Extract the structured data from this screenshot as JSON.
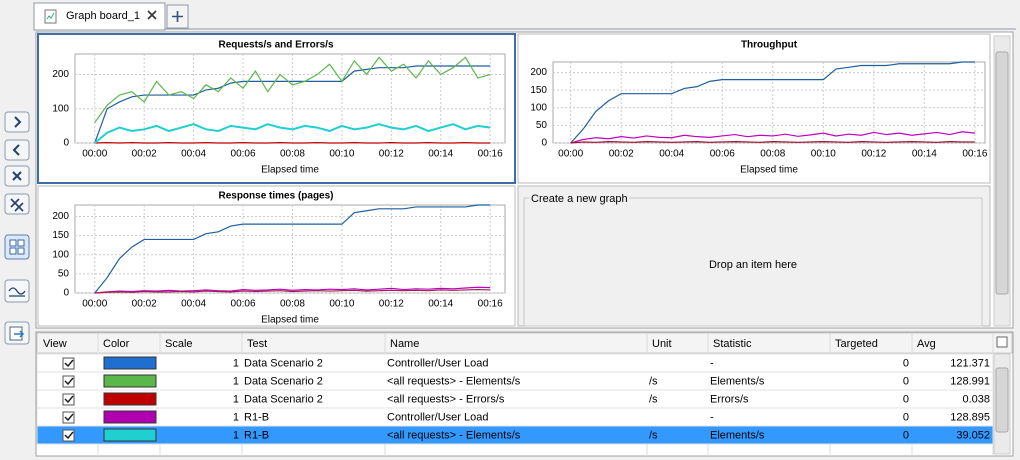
{
  "tab": {
    "title": "Graph board_1"
  },
  "chart_data": [
    {
      "type": "line",
      "title": "Requests/s and Errors/s",
      "x_label": "Elapsed time",
      "x": [
        0,
        0.5,
        1,
        1.5,
        2,
        2.5,
        3,
        3.5,
        4,
        4.5,
        5,
        5.5,
        6,
        6.5,
        7,
        7.5,
        8,
        8.5,
        9,
        9.5,
        10,
        10.5,
        11,
        11.5,
        12,
        12.5,
        13,
        13.5,
        14,
        14.5,
        15,
        15.5,
        16
      ],
      "xlim": [
        -0.8,
        16.6
      ],
      "xticks": [
        {
          "value": 0,
          "label": "00:00"
        },
        {
          "value": 2,
          "label": "00:02"
        },
        {
          "value": 4,
          "label": "00:04"
        },
        {
          "value": 6,
          "label": "00:06"
        },
        {
          "value": 8,
          "label": "00:08"
        },
        {
          "value": 10,
          "label": "00:10"
        },
        {
          "value": 12,
          "label": "00:12"
        },
        {
          "value": 14,
          "label": "00:14"
        },
        {
          "value": 16,
          "label": "00:16"
        }
      ],
      "ylim": [
        0,
        260
      ],
      "yticks": [
        0,
        100,
        200
      ],
      "grid": true,
      "series": [
        {
          "color": "#1f5fa0",
          "values": [
            0,
            100,
            120,
            135,
            140,
            140,
            140,
            140,
            140,
            155,
            160,
            175,
            180,
            180,
            180,
            180,
            180,
            180,
            180,
            180,
            180,
            210,
            215,
            220,
            220,
            220,
            225,
            225,
            225,
            225,
            225,
            225,
            225
          ]
        },
        {
          "color": "#5ab84a",
          "values": [
            60,
            110,
            140,
            150,
            120,
            180,
            140,
            150,
            130,
            170,
            150,
            190,
            160,
            210,
            150,
            200,
            170,
            180,
            200,
            230,
            180,
            240,
            200,
            250,
            210,
            230,
            190,
            240,
            200,
            220,
            250,
            190,
            200
          ]
        },
        {
          "color": "#c00000",
          "values": [
            0,
            1,
            0,
            1,
            0,
            0,
            1,
            0,
            0,
            1,
            0,
            0,
            1,
            0,
            0,
            1,
            0,
            0,
            1,
            0,
            0,
            1,
            0,
            0,
            1,
            0,
            0,
            1,
            0,
            0,
            1,
            0,
            0
          ]
        },
        {
          "color": "#20d0d0",
          "values": [
            0,
            30,
            45,
            35,
            40,
            50,
            35,
            45,
            55,
            40,
            35,
            50,
            45,
            40,
            55,
            45,
            40,
            50,
            45,
            35,
            50,
            40,
            45,
            55,
            45,
            40,
            50,
            35,
            45,
            55,
            40,
            50,
            45
          ]
        }
      ]
    },
    {
      "type": "line",
      "title": "Throughput",
      "x_label": "Elapsed time",
      "x": [
        0,
        0.5,
        1,
        1.5,
        2,
        2.5,
        3,
        3.5,
        4,
        4.5,
        5,
        5.5,
        6,
        6.5,
        7,
        7.5,
        8,
        8.5,
        9,
        9.5,
        10,
        10.5,
        11,
        11.5,
        12,
        12.5,
        13,
        13.5,
        14,
        14.5,
        15,
        15.5,
        16
      ],
      "xlim": [
        -0.7,
        16.4
      ],
      "xticks": [
        {
          "value": 0,
          "label": "00:00"
        },
        {
          "value": 2,
          "label": "00:02"
        },
        {
          "value": 4,
          "label": "00:04"
        },
        {
          "value": 6,
          "label": "00:06"
        },
        {
          "value": 8,
          "label": "00:08"
        },
        {
          "value": 10,
          "label": "00:10"
        },
        {
          "value": 12,
          "label": "00:12"
        },
        {
          "value": 14,
          "label": "00:14"
        },
        {
          "value": 16,
          "label": "00:16"
        }
      ],
      "ylim": [
        0,
        230
      ],
      "yticks": [
        0,
        50,
        100,
        150,
        200
      ],
      "grid": true,
      "series": [
        {
          "color": "#1f5fa0",
          "values": [
            0,
            40,
            90,
            120,
            140,
            140,
            140,
            140,
            140,
            155,
            160,
            175,
            180,
            180,
            180,
            180,
            180,
            180,
            180,
            180,
            180,
            210,
            215,
            220,
            220,
            220,
            225,
            225,
            225,
            225,
            225,
            230,
            230
          ]
        },
        {
          "color": "#c000c0",
          "values": [
            0,
            10,
            15,
            12,
            18,
            14,
            20,
            16,
            15,
            22,
            18,
            16,
            20,
            24,
            18,
            22,
            20,
            25,
            19,
            23,
            28,
            20,
            25,
            22,
            30,
            24,
            28,
            22,
            26,
            30,
            24,
            32,
            28
          ]
        },
        {
          "color": "#a01030",
          "values": [
            0,
            3,
            2,
            4,
            3,
            2,
            4,
            3,
            2,
            3,
            4,
            2,
            3,
            4,
            3,
            2,
            4,
            3,
            2,
            3,
            4,
            3,
            2,
            4,
            3,
            2,
            3,
            4,
            3,
            2,
            4,
            3,
            3
          ]
        }
      ]
    },
    {
      "type": "line",
      "title": "Response times (pages)",
      "x_label": "Elapsed time",
      "x": [
        0,
        0.5,
        1,
        1.5,
        2,
        2.5,
        3,
        3.5,
        4,
        4.5,
        5,
        5.5,
        6,
        6.5,
        7,
        7.5,
        8,
        8.5,
        9,
        9.5,
        10,
        10.5,
        11,
        11.5,
        12,
        12.5,
        13,
        13.5,
        14,
        14.5,
        15,
        15.5,
        16
      ],
      "xlim": [
        -0.8,
        16.6
      ],
      "xticks": [
        {
          "value": 0,
          "label": "00:00"
        },
        {
          "value": 2,
          "label": "00:02"
        },
        {
          "value": 4,
          "label": "00:04"
        },
        {
          "value": 6,
          "label": "00:06"
        },
        {
          "value": 8,
          "label": "00:08"
        },
        {
          "value": 10,
          "label": "00:10"
        },
        {
          "value": 12,
          "label": "00:12"
        },
        {
          "value": 14,
          "label": "00:14"
        },
        {
          "value": 16,
          "label": "00:16"
        }
      ],
      "ylim": [
        0,
        230
      ],
      "yticks": [
        0,
        50,
        100,
        150,
        200
      ],
      "grid": true,
      "series": [
        {
          "color": "#1f5fa0",
          "values": [
            0,
            40,
            90,
            120,
            140,
            140,
            140,
            140,
            140,
            155,
            160,
            175,
            180,
            180,
            180,
            180,
            180,
            180,
            180,
            180,
            180,
            210,
            215,
            220,
            220,
            220,
            225,
            225,
            225,
            225,
            225,
            230,
            230
          ]
        },
        {
          "color": "#c000c0",
          "values": [
            0,
            3,
            5,
            4,
            6,
            5,
            7,
            5,
            6,
            8,
            6,
            5,
            9,
            7,
            8,
            10,
            7,
            9,
            8,
            10,
            9,
            11,
            8,
            10,
            12,
            9,
            11,
            10,
            12,
            11,
            13,
            15,
            14
          ]
        },
        {
          "color": "#a02050",
          "values": [
            0,
            2,
            3,
            2,
            4,
            3,
            3,
            4,
            3,
            5,
            4,
            3,
            5,
            4,
            5,
            6,
            4,
            5,
            6,
            5,
            6,
            7,
            5,
            6,
            7,
            6,
            7,
            6,
            8,
            7,
            8,
            9,
            8
          ]
        }
      ]
    }
  ],
  "new_graph": {
    "title": "Create a new graph",
    "hint": "Drop an item here"
  },
  "table": {
    "columns": [
      "View",
      "Color",
      "Scale",
      "Test",
      "Name",
      "Unit",
      "Statistic",
      "Targeted",
      "Avg"
    ],
    "rows": [
      {
        "color": "#1f6fd0",
        "scale": 1,
        "test": "Data Scenario 2",
        "name": "Controller/User Load",
        "unit": "",
        "statistic": "-",
        "targeted": 0,
        "avg": 121.371
      },
      {
        "color": "#5ab84a",
        "scale": 1,
        "test": "Data Scenario 2",
        "name": "<all requests> - Elements/s",
        "unit": "/s",
        "statistic": "Elements/s",
        "targeted": 0,
        "avg": 128.991
      },
      {
        "color": "#c00000",
        "scale": 1,
        "test": "Data Scenario 2",
        "name": "<all requests> - Errors/s",
        "unit": "/s",
        "statistic": "Errors/s",
        "targeted": 0,
        "avg": 0.038
      },
      {
        "color": "#b000b0",
        "scale": 1,
        "test": "R1-B",
        "name": "Controller/User Load",
        "unit": "",
        "statistic": "-",
        "targeted": 0,
        "avg": 128.895
      },
      {
        "color": "#20d0d0",
        "scale": 1,
        "test": "R1-B",
        "name": "<all requests> - Elements/s",
        "unit": "/s",
        "statistic": "Elements/s",
        "targeted": 0,
        "avg": 39.052
      }
    ],
    "selected_row": 4
  }
}
